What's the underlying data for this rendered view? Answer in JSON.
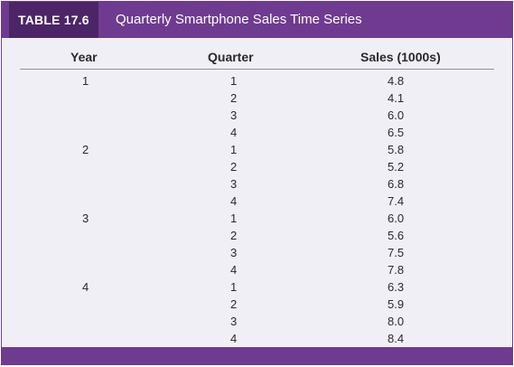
{
  "table": {
    "tag": "TABLE 17.6",
    "title": "Quarterly Smartphone Sales Time Series",
    "headers": {
      "year": "Year",
      "quarter": "Quarter",
      "sales": "Sales (1000s)"
    },
    "rows": [
      {
        "year": "1",
        "quarter": "1",
        "sales": "4.8"
      },
      {
        "year": "",
        "quarter": "2",
        "sales": "4.1"
      },
      {
        "year": "",
        "quarter": "3",
        "sales": "6.0"
      },
      {
        "year": "",
        "quarter": "4",
        "sales": "6.5"
      },
      {
        "year": "2",
        "quarter": "1",
        "sales": "5.8"
      },
      {
        "year": "",
        "quarter": "2",
        "sales": "5.2"
      },
      {
        "year": "",
        "quarter": "3",
        "sales": "6.8"
      },
      {
        "year": "",
        "quarter": "4",
        "sales": "7.4"
      },
      {
        "year": "3",
        "quarter": "1",
        "sales": "6.0"
      },
      {
        "year": "",
        "quarter": "2",
        "sales": "5.6"
      },
      {
        "year": "",
        "quarter": "3",
        "sales": "7.5"
      },
      {
        "year": "",
        "quarter": "4",
        "sales": "7.8"
      },
      {
        "year": "4",
        "quarter": "1",
        "sales": "6.3"
      },
      {
        "year": "",
        "quarter": "2",
        "sales": "5.9"
      },
      {
        "year": "",
        "quarter": "3",
        "sales": "8.0"
      },
      {
        "year": "",
        "quarter": "4",
        "sales": "8.4"
      }
    ]
  },
  "colors": {
    "header_bar": "#6e3b90",
    "tag_bg": "#4c2566",
    "panel_bg": "#f1eff6"
  }
}
